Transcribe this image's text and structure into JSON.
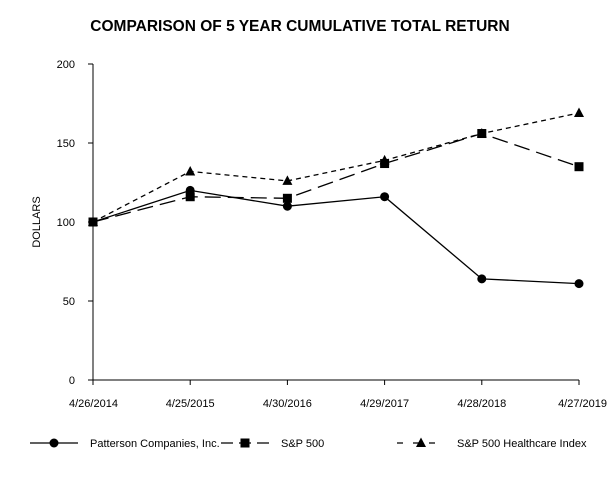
{
  "chart_data": {
    "type": "line",
    "title": "COMPARISON OF 5 YEAR CUMULATIVE TOTAL RETURN",
    "xlabel": "",
    "ylabel": "DOLLARS",
    "categories": [
      "4/26/2014",
      "4/25/2015",
      "4/30/2016",
      "4/29/2017",
      "4/28/2018",
      "4/27/2019"
    ],
    "ylim": [
      0,
      200
    ],
    "yticks": [
      "0",
      "50",
      "100",
      "150",
      "200"
    ],
    "grid": false,
    "legend_position": "bottom",
    "series": [
      {
        "name": "Patterson Companies, Inc.",
        "values": [
          100,
          120,
          110,
          116,
          64,
          61
        ],
        "marker": "circle",
        "line_style": "solid",
        "color": "#000000"
      },
      {
        "name": "S&P 500",
        "values": [
          100,
          116,
          115,
          137,
          156,
          135
        ],
        "marker": "square",
        "line_style": "long-dash",
        "color": "#000000"
      },
      {
        "name": "S&P 500 Healthcare Index",
        "values": [
          100,
          132,
          126,
          139,
          156,
          169
        ],
        "marker": "triangle",
        "line_style": "short-dash",
        "color": "#000000"
      }
    ]
  }
}
